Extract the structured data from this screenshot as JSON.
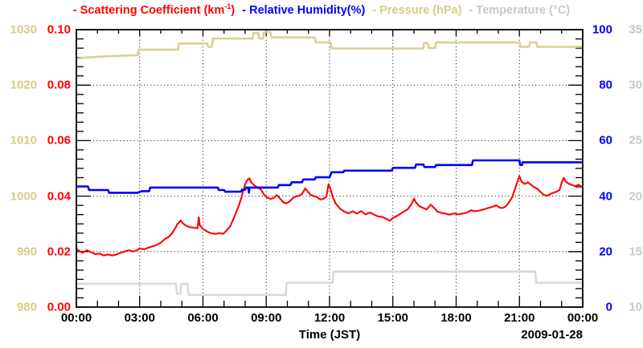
{
  "chart_data": {
    "type": "line",
    "title": "",
    "xlabel": "Time (JST)",
    "date_label": "2009-01-28",
    "grid": "dotted-at-major-ticks",
    "legend_position": "top",
    "legend": [
      {
        "pre": "- Scattering Coefficient (km",
        "sup": "-1",
        "post": ")",
        "color": "#ff0000"
      },
      {
        "pre": "- Relative Humidity(%)",
        "post": "",
        "color": "#0000ff"
      },
      {
        "pre": "- Pressure (hPa)",
        "post": "",
        "color": "#d6cd85"
      },
      {
        "pre": "- Temperature (°C)",
        "post": "",
        "color": "#c9c9c9"
      }
    ],
    "x_axis": {
      "title": "Time (JST)",
      "range_hours": [
        0,
        24
      ],
      "major_tick_hours": 3,
      "minor_tick_hours": 1,
      "tick_labels": [
        "00:00",
        "03:00",
        "06:00",
        "09:00",
        "12:00",
        "15:00",
        "18:00",
        "21:00",
        "00:00"
      ]
    },
    "axes": {
      "pressure": {
        "label": "Pressure (hPa)",
        "side": "outer-left",
        "min": 980,
        "max": 1030,
        "color": "#d6cd85",
        "tick_labels": [
          "1030",
          "1020",
          "1010",
          "1000",
          "990",
          "980"
        ]
      },
      "scattering": {
        "label": "Scattering Coefficient (km-1)",
        "side": "inner-left",
        "min": 0,
        "max": 0.1,
        "color": "#ff0000",
        "tick_labels": [
          "0.10",
          "0.08",
          "0.06",
          "0.04",
          "0.02",
          "0.00"
        ]
      },
      "rh": {
        "label": "Relative Humidity(%)",
        "side": "inner-right",
        "min": 0,
        "max": 100,
        "color": "#0000ff",
        "tick_labels": [
          "100",
          "80",
          "60",
          "40",
          "20",
          "0"
        ]
      },
      "temp": {
        "label": "Temperature (C)",
        "side": "outer-right",
        "min": 10,
        "max": 35,
        "color": "#c9c9c9",
        "tick_labels": [
          "35",
          "30",
          "25",
          "20",
          "15",
          "10"
        ]
      }
    },
    "series": [
      {
        "name": "Pressure (hPa)",
        "axis": "pressure",
        "color": "#d8d194",
        "width": 2.6,
        "data": [
          [
            0,
            1024.8
          ],
          [
            0.5,
            1025.0
          ],
          [
            1.5,
            1025.2
          ],
          [
            2.9,
            1025.4
          ],
          [
            2.95,
            1026.4
          ],
          [
            4.82,
            1026.4
          ],
          [
            4.87,
            1027.5
          ],
          [
            6.2,
            1027.5
          ],
          [
            6.25,
            1026.9
          ],
          [
            6.42,
            1026.9
          ],
          [
            6.47,
            1028.4
          ],
          [
            8.35,
            1028.4
          ],
          [
            8.4,
            1029.4
          ],
          [
            8.62,
            1029.4
          ],
          [
            8.67,
            1028.4
          ],
          [
            8.85,
            1028.4
          ],
          [
            8.9,
            1029.6
          ],
          [
            9.2,
            1029.6
          ],
          [
            9.25,
            1028.6
          ],
          [
            11.3,
            1028.6
          ],
          [
            11.35,
            1027.7
          ],
          [
            12.05,
            1027.7
          ],
          [
            12.1,
            1026.6
          ],
          [
            16.43,
            1026.6
          ],
          [
            16.48,
            1027.6
          ],
          [
            16.65,
            1027.6
          ],
          [
            16.7,
            1026.7
          ],
          [
            17.0,
            1026.7
          ],
          [
            17.05,
            1027.7
          ],
          [
            21.0,
            1027.7
          ],
          [
            21.05,
            1026.9
          ],
          [
            21.45,
            1026.9
          ],
          [
            21.5,
            1027.7
          ],
          [
            21.8,
            1027.7
          ],
          [
            21.85,
            1026.9
          ],
          [
            24,
            1026.9
          ]
        ]
      },
      {
        "name": "Temperature (C)",
        "axis": "temp",
        "color": "#d9d9d9",
        "width": 2.6,
        "data": [
          [
            0,
            12.1
          ],
          [
            4.72,
            12.1
          ],
          [
            4.77,
            11.2
          ],
          [
            4.92,
            11.2
          ],
          [
            4.97,
            12.1
          ],
          [
            5.27,
            12.1
          ],
          [
            5.32,
            11.1
          ],
          [
            9.92,
            11.1
          ],
          [
            9.97,
            12.2
          ],
          [
            12.15,
            12.2
          ],
          [
            12.2,
            13.2
          ],
          [
            21.75,
            13.2
          ],
          [
            21.8,
            12.2
          ],
          [
            24,
            12.2
          ]
        ]
      },
      {
        "name": "Scattering Coefficient (km-1)",
        "axis": "scattering",
        "color": "#ff0000",
        "width": 2.1,
        "data": [
          [
            0,
            0.021
          ],
          [
            0.15,
            0.0202
          ],
          [
            0.3,
            0.0196
          ],
          [
            0.5,
            0.0205
          ],
          [
            0.7,
            0.0198
          ],
          [
            0.9,
            0.0191
          ],
          [
            1.1,
            0.0193
          ],
          [
            1.3,
            0.0186
          ],
          [
            1.5,
            0.019
          ],
          [
            1.7,
            0.0186
          ],
          [
            1.9,
            0.019
          ],
          [
            2.1,
            0.0196
          ],
          [
            2.3,
            0.0201
          ],
          [
            2.5,
            0.0205
          ],
          [
            2.7,
            0.02
          ],
          [
            2.9,
            0.0206
          ],
          [
            3.0,
            0.0212
          ],
          [
            3.2,
            0.0208
          ],
          [
            3.4,
            0.0214
          ],
          [
            3.6,
            0.0219
          ],
          [
            3.8,
            0.0224
          ],
          [
            4.0,
            0.0232
          ],
          [
            4.2,
            0.0246
          ],
          [
            4.35,
            0.0252
          ],
          [
            4.5,
            0.0262
          ],
          [
            4.65,
            0.028
          ],
          [
            4.8,
            0.03
          ],
          [
            4.95,
            0.0312
          ],
          [
            5.05,
            0.0302
          ],
          [
            5.2,
            0.0293
          ],
          [
            5.4,
            0.0288
          ],
          [
            5.6,
            0.0286
          ],
          [
            5.75,
            0.0284
          ],
          [
            5.8,
            0.0324
          ],
          [
            5.85,
            0.0295
          ],
          [
            6.0,
            0.0282
          ],
          [
            6.2,
            0.0272
          ],
          [
            6.4,
            0.0266
          ],
          [
            6.6,
            0.0264
          ],
          [
            6.8,
            0.0267
          ],
          [
            6.95,
            0.0264
          ],
          [
            7.1,
            0.0274
          ],
          [
            7.3,
            0.0292
          ],
          [
            7.5,
            0.0328
          ],
          [
            7.7,
            0.0366
          ],
          [
            7.85,
            0.0402
          ],
          [
            8.0,
            0.0443
          ],
          [
            8.1,
            0.0458
          ],
          [
            8.2,
            0.0464
          ],
          [
            8.3,
            0.0448
          ],
          [
            8.45,
            0.0438
          ],
          [
            8.6,
            0.043
          ],
          [
            8.75,
            0.0424
          ],
          [
            8.9,
            0.0405
          ],
          [
            9.05,
            0.0395
          ],
          [
            9.2,
            0.039
          ],
          [
            9.35,
            0.0393
          ],
          [
            9.5,
            0.0404
          ],
          [
            9.65,
            0.0392
          ],
          [
            9.8,
            0.0378
          ],
          [
            9.95,
            0.0374
          ],
          [
            10.1,
            0.038
          ],
          [
            10.25,
            0.0392
          ],
          [
            10.4,
            0.0399
          ],
          [
            10.55,
            0.0401
          ],
          [
            10.7,
            0.0408
          ],
          [
            10.85,
            0.0428
          ],
          [
            10.95,
            0.0418
          ],
          [
            11.1,
            0.0405
          ],
          [
            11.25,
            0.04
          ],
          [
            11.4,
            0.0397
          ],
          [
            11.55,
            0.0388
          ],
          [
            11.7,
            0.039
          ],
          [
            11.85,
            0.0398
          ],
          [
            11.95,
            0.0443
          ],
          [
            12.05,
            0.0425
          ],
          [
            12.15,
            0.0398
          ],
          [
            12.3,
            0.0372
          ],
          [
            12.5,
            0.0355
          ],
          [
            12.7,
            0.0344
          ],
          [
            12.9,
            0.0338
          ],
          [
            13.1,
            0.0345
          ],
          [
            13.3,
            0.0337
          ],
          [
            13.5,
            0.0346
          ],
          [
            13.7,
            0.0334
          ],
          [
            13.9,
            0.0341
          ],
          [
            14.1,
            0.0334
          ],
          [
            14.3,
            0.0327
          ],
          [
            14.5,
            0.0325
          ],
          [
            14.7,
            0.0318
          ],
          [
            14.85,
            0.0311
          ],
          [
            15.0,
            0.0321
          ],
          [
            15.2,
            0.0329
          ],
          [
            15.45,
            0.0341
          ],
          [
            15.7,
            0.0352
          ],
          [
            15.9,
            0.0373
          ],
          [
            16.0,
            0.0391
          ],
          [
            16.1,
            0.0377
          ],
          [
            16.25,
            0.0364
          ],
          [
            16.45,
            0.0357
          ],
          [
            16.6,
            0.0352
          ],
          [
            16.8,
            0.0369
          ],
          [
            16.95,
            0.0358
          ],
          [
            17.1,
            0.0345
          ],
          [
            17.3,
            0.0339
          ],
          [
            17.5,
            0.0337
          ],
          [
            17.7,
            0.0333
          ],
          [
            17.9,
            0.0338
          ],
          [
            18.1,
            0.0334
          ],
          [
            18.3,
            0.0337
          ],
          [
            18.5,
            0.034
          ],
          [
            18.7,
            0.0349
          ],
          [
            18.9,
            0.0345
          ],
          [
            19.1,
            0.0348
          ],
          [
            19.3,
            0.0352
          ],
          [
            19.5,
            0.0357
          ],
          [
            19.7,
            0.0361
          ],
          [
            19.9,
            0.0367
          ],
          [
            20.05,
            0.0359
          ],
          [
            20.2,
            0.0357
          ],
          [
            20.35,
            0.0363
          ],
          [
            20.5,
            0.0377
          ],
          [
            20.65,
            0.0395
          ],
          [
            20.8,
            0.0428
          ],
          [
            20.95,
            0.0462
          ],
          [
            21.0,
            0.0472
          ],
          [
            21.1,
            0.0452
          ],
          [
            21.25,
            0.0444
          ],
          [
            21.4,
            0.045
          ],
          [
            21.55,
            0.0441
          ],
          [
            21.7,
            0.0432
          ],
          [
            21.85,
            0.0427
          ],
          [
            22.0,
            0.0415
          ],
          [
            22.15,
            0.0405
          ],
          [
            22.3,
            0.0401
          ],
          [
            22.45,
            0.0407
          ],
          [
            22.6,
            0.0412
          ],
          [
            22.75,
            0.0416
          ],
          [
            22.9,
            0.0422
          ],
          [
            23.0,
            0.0448
          ],
          [
            23.1,
            0.0466
          ],
          [
            23.2,
            0.0452
          ],
          [
            23.35,
            0.0444
          ],
          [
            23.5,
            0.044
          ],
          [
            23.65,
            0.0436
          ],
          [
            23.8,
            0.0441
          ],
          [
            24,
            0.0431
          ]
        ]
      },
      {
        "name": "Relative Humidity(%)",
        "axis": "rh",
        "color": "#0000ff",
        "width": 2.6,
        "data": [
          [
            0,
            43.5
          ],
          [
            0.55,
            43.5
          ],
          [
            0.6,
            42.2
          ],
          [
            1.5,
            42.2
          ],
          [
            1.55,
            41.2
          ],
          [
            2.9,
            41.2
          ],
          [
            3.1,
            41.8
          ],
          [
            3.45,
            41.8
          ],
          [
            3.5,
            43.1
          ],
          [
            6.7,
            43.1
          ],
          [
            6.75,
            42.2
          ],
          [
            7.0,
            42.2
          ],
          [
            7.05,
            41.6
          ],
          [
            7.8,
            41.6
          ],
          [
            7.85,
            42.3
          ],
          [
            8.0,
            42.3
          ],
          [
            8.05,
            43.1
          ],
          [
            8.15,
            43.1
          ],
          [
            8.18,
            41.2
          ],
          [
            8.21,
            43.1
          ],
          [
            9.55,
            43.1
          ],
          [
            9.6,
            44.0
          ],
          [
            10.15,
            44.0
          ],
          [
            10.2,
            45.0
          ],
          [
            10.7,
            45.0
          ],
          [
            10.75,
            46.0
          ],
          [
            11.3,
            46.0
          ],
          [
            11.35,
            46.8
          ],
          [
            12.0,
            46.8
          ],
          [
            12.1,
            48.6
          ],
          [
            12.65,
            48.6
          ],
          [
            12.7,
            49.2
          ],
          [
            14.95,
            49.2
          ],
          [
            15.0,
            50.2
          ],
          [
            16.05,
            50.2
          ],
          [
            16.1,
            51.4
          ],
          [
            16.45,
            51.4
          ],
          [
            16.5,
            50.5
          ],
          [
            17.0,
            50.5
          ],
          [
            17.05,
            51.2
          ],
          [
            18.75,
            51.2
          ],
          [
            18.8,
            52.9
          ],
          [
            21.0,
            52.9
          ],
          [
            21.03,
            51.2
          ],
          [
            21.12,
            51.2
          ],
          [
            21.15,
            52.2
          ],
          [
            24,
            52.2
          ]
        ]
      }
    ]
  }
}
